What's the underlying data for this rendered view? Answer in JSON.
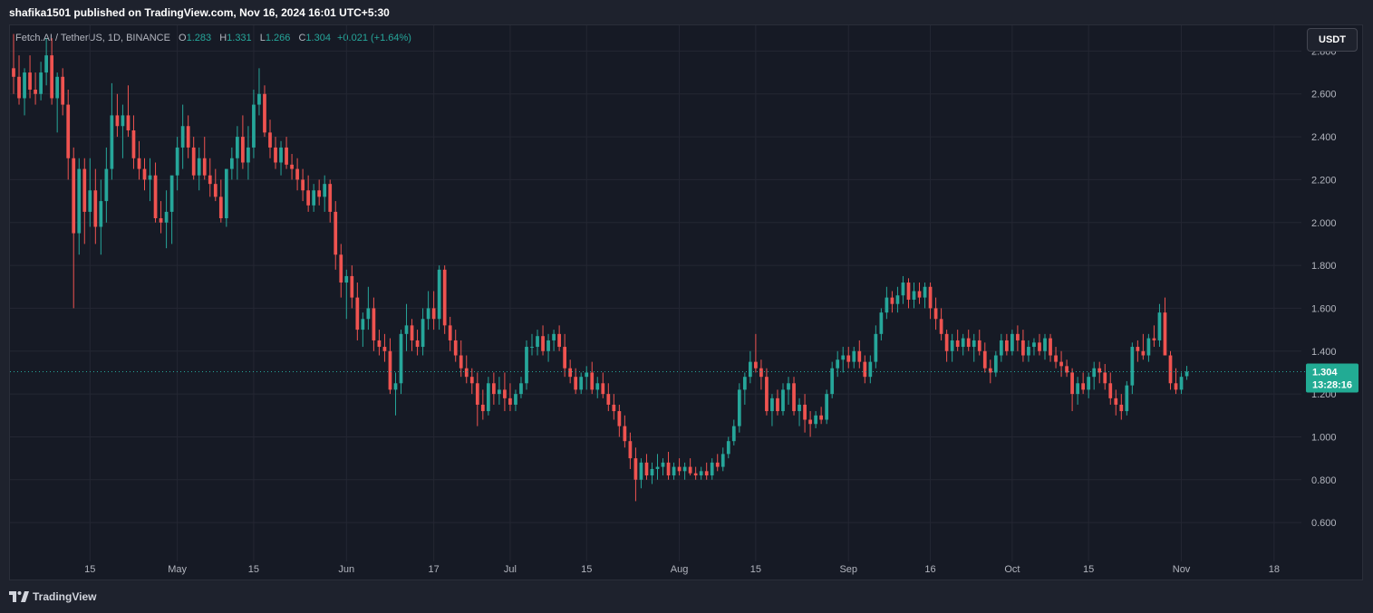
{
  "header": {
    "publisher": "shafika1501 published on TradingView.com, Nov 16, 2024 16:01 UTC+5:30"
  },
  "legend": {
    "symbol": "Fetch.AI / TetherUS, 1D, BINANCE",
    "o_label": "O",
    "o_value": "1.283",
    "h_label": "H",
    "h_value": "1.331",
    "l_label": "L",
    "l_value": "1.266",
    "c_label": "C",
    "c_value": "1.304",
    "change": "+0.021 (+1.64%)"
  },
  "currency": "USDT",
  "last_price": {
    "value": "1.304",
    "countdown": "13:28:16"
  },
  "footer": {
    "brand": "TradingView"
  },
  "colors": {
    "up": "#26a69a",
    "down": "#ef5350",
    "grid": "#242733",
    "badge_up": "#22ab94"
  },
  "chart_data": {
    "type": "candlestick",
    "ylim": [
      0.44,
      2.92
    ],
    "y_ticks": [
      {
        "value": 0.6,
        "label": "0.600"
      },
      {
        "value": 0.8,
        "label": "0.800"
      },
      {
        "value": 1.0,
        "label": "1.000"
      },
      {
        "value": 1.2,
        "label": "1.200"
      },
      {
        "value": 1.4,
        "label": "1.400"
      },
      {
        "value": 1.6,
        "label": "1.600"
      },
      {
        "value": 1.8,
        "label": "1.800"
      },
      {
        "value": 2.0,
        "label": "2.000"
      },
      {
        "value": 2.2,
        "label": "2.200"
      },
      {
        "value": 2.4,
        "label": "2.400"
      },
      {
        "value": 2.6,
        "label": "2.600"
      },
      {
        "value": 2.8,
        "label": "2.800"
      }
    ],
    "x_ticks": [
      {
        "index": 14,
        "label": "15"
      },
      {
        "index": 30,
        "label": "May"
      },
      {
        "index": 44,
        "label": "15"
      },
      {
        "index": 61,
        "label": "Jun"
      },
      {
        "index": 77,
        "label": "17"
      },
      {
        "index": 91,
        "label": "Jul"
      },
      {
        "index": 105,
        "label": "15"
      },
      {
        "index": 122,
        "label": "Aug"
      },
      {
        "index": 136,
        "label": "15"
      },
      {
        "index": 153,
        "label": "Sep"
      },
      {
        "index": 168,
        "label": "16"
      },
      {
        "index": 183,
        "label": "Oct"
      },
      {
        "index": 197,
        "label": "15"
      },
      {
        "index": 214,
        "label": "Nov"
      },
      {
        "index": 231,
        "label": "18"
      }
    ],
    "total_slots": 236,
    "candles": [
      [
        2.72,
        2.88,
        2.6,
        2.68
      ],
      [
        2.68,
        2.78,
        2.55,
        2.58
      ],
      [
        2.58,
        2.72,
        2.5,
        2.7
      ],
      [
        2.7,
        2.78,
        2.58,
        2.62
      ],
      [
        2.62,
        2.7,
        2.55,
        2.6
      ],
      [
        2.6,
        2.75,
        2.57,
        2.7
      ],
      [
        2.7,
        2.86,
        2.64,
        2.78
      ],
      [
        2.78,
        2.86,
        2.55,
        2.58
      ],
      [
        2.58,
        2.7,
        2.42,
        2.68
      ],
      [
        2.68,
        2.72,
        2.5,
        2.55
      ],
      [
        2.55,
        2.62,
        2.2,
        2.3
      ],
      [
        2.3,
        2.35,
        1.6,
        1.95
      ],
      [
        1.95,
        2.3,
        1.85,
        2.25
      ],
      [
        2.25,
        2.3,
        1.9,
        2.05
      ],
      [
        2.05,
        2.3,
        1.98,
        2.15
      ],
      [
        2.15,
        2.25,
        1.9,
        1.98
      ],
      [
        1.98,
        2.2,
        1.85,
        2.1
      ],
      [
        2.1,
        2.35,
        2.0,
        2.25
      ],
      [
        2.25,
        2.65,
        2.2,
        2.5
      ],
      [
        2.5,
        2.6,
        2.4,
        2.45
      ],
      [
        2.45,
        2.55,
        2.3,
        2.5
      ],
      [
        2.5,
        2.64,
        2.4,
        2.43
      ],
      [
        2.43,
        2.5,
        2.25,
        2.3
      ],
      [
        2.3,
        2.38,
        2.2,
        2.25
      ],
      [
        2.25,
        2.3,
        2.15,
        2.2
      ],
      [
        2.2,
        2.3,
        2.1,
        2.22
      ],
      [
        2.22,
        2.28,
        2.0,
        2.02
      ],
      [
        2.02,
        2.1,
        1.95,
        2.0
      ],
      [
        2.0,
        2.15,
        1.88,
        2.05
      ],
      [
        2.05,
        2.2,
        1.9,
        2.22
      ],
      [
        2.22,
        2.4,
        2.15,
        2.35
      ],
      [
        2.35,
        2.55,
        2.25,
        2.45
      ],
      [
        2.45,
        2.5,
        2.3,
        2.35
      ],
      [
        2.35,
        2.4,
        2.2,
        2.22
      ],
      [
        2.22,
        2.35,
        2.15,
        2.3
      ],
      [
        2.3,
        2.4,
        2.2,
        2.22
      ],
      [
        2.22,
        2.3,
        2.12,
        2.18
      ],
      [
        2.18,
        2.25,
        2.1,
        2.12
      ],
      [
        2.12,
        2.2,
        2.0,
        2.02
      ],
      [
        2.02,
        2.25,
        1.98,
        2.25
      ],
      [
        2.25,
        2.35,
        2.2,
        2.3
      ],
      [
        2.3,
        2.45,
        2.2,
        2.4
      ],
      [
        2.4,
        2.5,
        2.25,
        2.28
      ],
      [
        2.28,
        2.45,
        2.2,
        2.35
      ],
      [
        2.35,
        2.62,
        2.3,
        2.55
      ],
      [
        2.55,
        2.72,
        2.5,
        2.6
      ],
      [
        2.6,
        2.64,
        2.4,
        2.42
      ],
      [
        2.42,
        2.48,
        2.3,
        2.35
      ],
      [
        2.35,
        2.4,
        2.25,
        2.28
      ],
      [
        2.28,
        2.38,
        2.22,
        2.35
      ],
      [
        2.35,
        2.4,
        2.25,
        2.27
      ],
      [
        2.27,
        2.32,
        2.2,
        2.25
      ],
      [
        2.25,
        2.3,
        2.15,
        2.2
      ],
      [
        2.2,
        2.25,
        2.1,
        2.15
      ],
      [
        2.15,
        2.22,
        2.05,
        2.08
      ],
      [
        2.08,
        2.18,
        2.05,
        2.15
      ],
      [
        2.15,
        2.2,
        2.08,
        2.12
      ],
      [
        2.12,
        2.22,
        2.05,
        2.18
      ],
      [
        2.18,
        2.2,
        2.0,
        2.05
      ],
      [
        2.05,
        2.1,
        1.78,
        1.85
      ],
      [
        1.85,
        1.9,
        1.65,
        1.72
      ],
      [
        1.72,
        1.78,
        1.55,
        1.75
      ],
      [
        1.75,
        1.8,
        1.6,
        1.65
      ],
      [
        1.65,
        1.72,
        1.45,
        1.5
      ],
      [
        1.5,
        1.58,
        1.42,
        1.55
      ],
      [
        1.55,
        1.7,
        1.5,
        1.6
      ],
      [
        1.6,
        1.65,
        1.4,
        1.45
      ],
      [
        1.45,
        1.5,
        1.38,
        1.42
      ],
      [
        1.42,
        1.48,
        1.35,
        1.4
      ],
      [
        1.4,
        1.46,
        1.2,
        1.22
      ],
      [
        1.22,
        1.3,
        1.1,
        1.25
      ],
      [
        1.25,
        1.5,
        1.2,
        1.48
      ],
      [
        1.48,
        1.62,
        1.4,
        1.52
      ],
      [
        1.52,
        1.55,
        1.4,
        1.45
      ],
      [
        1.45,
        1.5,
        1.38,
        1.42
      ],
      [
        1.42,
        1.6,
        1.38,
        1.55
      ],
      [
        1.55,
        1.68,
        1.5,
        1.6
      ],
      [
        1.6,
        1.68,
        1.5,
        1.55
      ],
      [
        1.55,
        1.8,
        1.5,
        1.78
      ],
      [
        1.78,
        1.8,
        1.48,
        1.52
      ],
      [
        1.52,
        1.56,
        1.4,
        1.45
      ],
      [
        1.45,
        1.5,
        1.35,
        1.38
      ],
      [
        1.38,
        1.45,
        1.28,
        1.32
      ],
      [
        1.32,
        1.38,
        1.25,
        1.28
      ],
      [
        1.28,
        1.32,
        1.2,
        1.25
      ],
      [
        1.25,
        1.3,
        1.05,
        1.15
      ],
      [
        1.15,
        1.22,
        1.08,
        1.12
      ],
      [
        1.12,
        1.28,
        1.1,
        1.25
      ],
      [
        1.25,
        1.3,
        1.15,
        1.2
      ],
      [
        1.2,
        1.28,
        1.15,
        1.22
      ],
      [
        1.22,
        1.3,
        1.12,
        1.18
      ],
      [
        1.18,
        1.25,
        1.12,
        1.15
      ],
      [
        1.15,
        1.22,
        1.12,
        1.2
      ],
      [
        1.2,
        1.28,
        1.18,
        1.25
      ],
      [
        1.25,
        1.45,
        1.22,
        1.42
      ],
      [
        1.42,
        1.48,
        1.38,
        1.42
      ],
      [
        1.42,
        1.5,
        1.38,
        1.47
      ],
      [
        1.47,
        1.52,
        1.38,
        1.4
      ],
      [
        1.4,
        1.48,
        1.35,
        1.45
      ],
      [
        1.45,
        1.5,
        1.4,
        1.48
      ],
      [
        1.48,
        1.52,
        1.4,
        1.42
      ],
      [
        1.42,
        1.48,
        1.28,
        1.32
      ],
      [
        1.32,
        1.36,
        1.25,
        1.28
      ],
      [
        1.28,
        1.32,
        1.2,
        1.22
      ],
      [
        1.22,
        1.3,
        1.2,
        1.28
      ],
      [
        1.28,
        1.33,
        1.22,
        1.3
      ],
      [
        1.3,
        1.35,
        1.2,
        1.22
      ],
      [
        1.22,
        1.28,
        1.18,
        1.25
      ],
      [
        1.25,
        1.3,
        1.18,
        1.2
      ],
      [
        1.2,
        1.25,
        1.12,
        1.15
      ],
      [
        1.15,
        1.2,
        1.08,
        1.12
      ],
      [
        1.12,
        1.15,
        1.0,
        1.05
      ],
      [
        1.05,
        1.1,
        0.95,
        0.98
      ],
      [
        0.98,
        1.02,
        0.85,
        0.9
      ],
      [
        0.9,
        0.95,
        0.7,
        0.8
      ],
      [
        0.8,
        0.9,
        0.76,
        0.88
      ],
      [
        0.88,
        0.92,
        0.8,
        0.82
      ],
      [
        0.82,
        0.88,
        0.78,
        0.85
      ],
      [
        0.85,
        0.92,
        0.8,
        0.86
      ],
      [
        0.86,
        0.9,
        0.82,
        0.88
      ],
      [
        0.88,
        0.93,
        0.8,
        0.82
      ],
      [
        0.82,
        0.88,
        0.8,
        0.86
      ],
      [
        0.86,
        0.9,
        0.82,
        0.84
      ],
      [
        0.84,
        0.88,
        0.8,
        0.86
      ],
      [
        0.86,
        0.9,
        0.82,
        0.83
      ],
      [
        0.83,
        0.86,
        0.8,
        0.82
      ],
      [
        0.82,
        0.86,
        0.8,
        0.84
      ],
      [
        0.84,
        0.88,
        0.8,
        0.82
      ],
      [
        0.82,
        0.9,
        0.8,
        0.88
      ],
      [
        0.88,
        0.92,
        0.84,
        0.86
      ],
      [
        0.86,
        0.95,
        0.84,
        0.92
      ],
      [
        0.92,
        1.0,
        0.9,
        0.98
      ],
      [
        0.98,
        1.08,
        0.96,
        1.05
      ],
      [
        1.05,
        1.25,
        1.02,
        1.22
      ],
      [
        1.22,
        1.3,
        1.15,
        1.28
      ],
      [
        1.28,
        1.4,
        1.25,
        1.35
      ],
      [
        1.35,
        1.48,
        1.3,
        1.32
      ],
      [
        1.32,
        1.36,
        1.22,
        1.28
      ],
      [
        1.28,
        1.32,
        1.1,
        1.12
      ],
      [
        1.12,
        1.2,
        1.05,
        1.18
      ],
      [
        1.18,
        1.22,
        1.1,
        1.12
      ],
      [
        1.12,
        1.25,
        1.1,
        1.22
      ],
      [
        1.22,
        1.28,
        1.15,
        1.25
      ],
      [
        1.25,
        1.28,
        1.1,
        1.12
      ],
      [
        1.12,
        1.18,
        1.05,
        1.15
      ],
      [
        1.15,
        1.2,
        1.02,
        1.08
      ],
      [
        1.08,
        1.12,
        1.0,
        1.06
      ],
      [
        1.06,
        1.12,
        1.04,
        1.1
      ],
      [
        1.1,
        1.14,
        1.06,
        1.08
      ],
      [
        1.08,
        1.22,
        1.06,
        1.2
      ],
      [
        1.2,
        1.35,
        1.18,
        1.32
      ],
      [
        1.32,
        1.4,
        1.28,
        1.36
      ],
      [
        1.36,
        1.42,
        1.3,
        1.38
      ],
      [
        1.38,
        1.42,
        1.32,
        1.35
      ],
      [
        1.35,
        1.42,
        1.32,
        1.4
      ],
      [
        1.4,
        1.45,
        1.32,
        1.35
      ],
      [
        1.35,
        1.38,
        1.25,
        1.28
      ],
      [
        1.28,
        1.38,
        1.25,
        1.35
      ],
      [
        1.35,
        1.52,
        1.32,
        1.48
      ],
      [
        1.48,
        1.6,
        1.45,
        1.58
      ],
      [
        1.58,
        1.7,
        1.55,
        1.65
      ],
      [
        1.65,
        1.68,
        1.58,
        1.62
      ],
      [
        1.62,
        1.7,
        1.58,
        1.66
      ],
      [
        1.66,
        1.75,
        1.62,
        1.72
      ],
      [
        1.72,
        1.74,
        1.6,
        1.64
      ],
      [
        1.64,
        1.72,
        1.6,
        1.68
      ],
      [
        1.68,
        1.72,
        1.62,
        1.65
      ],
      [
        1.65,
        1.72,
        1.6,
        1.7
      ],
      [
        1.7,
        1.72,
        1.55,
        1.6
      ],
      [
        1.6,
        1.65,
        1.5,
        1.55
      ],
      [
        1.55,
        1.6,
        1.45,
        1.48
      ],
      [
        1.48,
        1.5,
        1.35,
        1.4
      ],
      [
        1.4,
        1.48,
        1.35,
        1.45
      ],
      [
        1.45,
        1.5,
        1.4,
        1.42
      ],
      [
        1.42,
        1.48,
        1.38,
        1.46
      ],
      [
        1.46,
        1.5,
        1.4,
        1.42
      ],
      [
        1.42,
        1.48,
        1.35,
        1.45
      ],
      [
        1.45,
        1.5,
        1.38,
        1.4
      ],
      [
        1.4,
        1.44,
        1.3,
        1.32
      ],
      [
        1.32,
        1.36,
        1.25,
        1.3
      ],
      [
        1.3,
        1.4,
        1.28,
        1.38
      ],
      [
        1.38,
        1.48,
        1.35,
        1.45
      ],
      [
        1.45,
        1.48,
        1.38,
        1.4
      ],
      [
        1.4,
        1.5,
        1.38,
        1.48
      ],
      [
        1.48,
        1.52,
        1.4,
        1.45
      ],
      [
        1.45,
        1.5,
        1.35,
        1.38
      ],
      [
        1.38,
        1.45,
        1.35,
        1.42
      ],
      [
        1.42,
        1.46,
        1.38,
        1.44
      ],
      [
        1.44,
        1.48,
        1.38,
        1.4
      ],
      [
        1.4,
        1.48,
        1.36,
        1.46
      ],
      [
        1.46,
        1.48,
        1.35,
        1.38
      ],
      [
        1.38,
        1.42,
        1.32,
        1.35
      ],
      [
        1.35,
        1.4,
        1.28,
        1.33
      ],
      [
        1.33,
        1.36,
        1.28,
        1.3
      ],
      [
        1.3,
        1.32,
        1.12,
        1.2
      ],
      [
        1.2,
        1.28,
        1.15,
        1.25
      ],
      [
        1.25,
        1.3,
        1.2,
        1.22
      ],
      [
        1.22,
        1.3,
        1.18,
        1.28
      ],
      [
        1.28,
        1.35,
        1.22,
        1.32
      ],
      [
        1.32,
        1.35,
        1.25,
        1.3
      ],
      [
        1.3,
        1.34,
        1.22,
        1.25
      ],
      [
        1.25,
        1.3,
        1.15,
        1.18
      ],
      [
        1.18,
        1.22,
        1.1,
        1.15
      ],
      [
        1.15,
        1.2,
        1.08,
        1.12
      ],
      [
        1.12,
        1.26,
        1.1,
        1.24
      ],
      [
        1.24,
        1.44,
        1.2,
        1.42
      ],
      [
        1.42,
        1.45,
        1.35,
        1.4
      ],
      [
        1.4,
        1.48,
        1.36,
        1.38
      ],
      [
        1.38,
        1.48,
        1.35,
        1.46
      ],
      [
        1.46,
        1.52,
        1.42,
        1.45
      ],
      [
        1.45,
        1.62,
        1.42,
        1.58
      ],
      [
        1.58,
        1.65,
        1.4,
        1.38
      ],
      [
        1.38,
        1.4,
        1.22,
        1.25
      ],
      [
        1.25,
        1.32,
        1.2,
        1.22
      ],
      [
        1.22,
        1.3,
        1.2,
        1.28
      ],
      [
        1.283,
        1.331,
        1.266,
        1.304
      ]
    ]
  }
}
